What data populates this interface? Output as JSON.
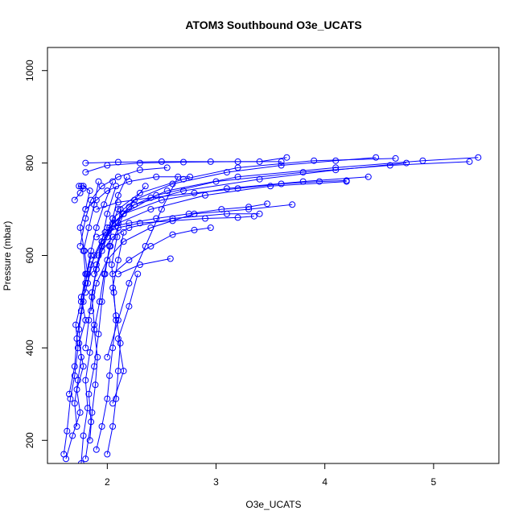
{
  "chart_data": {
    "type": "line",
    "title": "ATOM3 Southbound O3e_UCATS",
    "xlabel": "O3e_UCATS",
    "ylabel": "Pressure (mbar)",
    "xlim": [
      1.45,
      5.6
    ],
    "ylim": [
      1050,
      150
    ],
    "y_reversed": true,
    "xticks": [
      2,
      3,
      4,
      5
    ],
    "yticks": [
      200,
      400,
      600,
      800,
      1000
    ],
    "grid": false,
    "legend": "none",
    "marker": "open-circle",
    "color": "#0000ff",
    "series": [
      {
        "x": [
          1.62,
          1.68,
          1.75,
          1.72,
          1.78,
          1.74,
          1.8,
          1.76,
          1.82,
          1.79,
          1.75,
          1.8,
          1.84,
          1.78
        ],
        "y": [
          160,
          210,
          260,
          310,
          360,
          410,
          460,
          510,
          560,
          610,
          660,
          700,
          740,
          750
        ]
      },
      {
        "x": [
          1.6,
          1.63,
          1.66,
          1.7,
          1.73,
          1.71,
          1.76,
          1.8,
          1.78,
          1.83,
          1.88,
          1.92
        ],
        "y": [
          170,
          220,
          290,
          340,
          400,
          450,
          500,
          560,
          610,
          660,
          710,
          760
        ]
      },
      {
        "x": [
          1.8,
          1.85,
          1.83,
          1.88,
          1.92,
          1.95,
          1.98,
          2.02,
          2.05,
          2.1,
          2.18
        ],
        "y": [
          160,
          240,
          300,
          360,
          430,
          500,
          560,
          620,
          680,
          730,
          770
        ]
      },
      {
        "x": [
          1.76,
          1.78,
          1.82,
          1.8,
          1.84,
          1.88,
          1.86,
          1.9,
          1.95,
          2.0,
          2.08
        ],
        "y": [
          150,
          210,
          270,
          330,
          390,
          450,
          510,
          570,
          630,
          690,
          750
        ]
      },
      {
        "x": [
          1.9,
          1.95,
          2.0,
          2.02,
          2.05,
          2.08,
          2.06,
          2.04,
          2.09,
          2.12
        ],
        "y": [
          180,
          230,
          290,
          340,
          400,
          460,
          520,
          580,
          640,
          700
        ]
      },
      {
        "x": [
          2.0,
          2.05,
          2.08,
          2.1,
          2.12,
          2.08,
          2.05,
          2.1,
          2.15
        ],
        "y": [
          170,
          230,
          290,
          350,
          410,
          470,
          530,
          590,
          650
        ]
      },
      {
        "x": [
          1.72,
          1.7,
          1.73,
          1.76,
          1.74,
          1.78,
          1.81,
          1.85,
          1.9,
          1.97,
          2.05
        ],
        "y": [
          230,
          280,
          330,
          380,
          440,
          500,
          560,
          610,
          660,
          710,
          760
        ]
      },
      {
        "x": [
          1.84,
          1.86,
          1.89,
          1.91,
          1.88,
          1.93,
          1.97,
          2.03,
          2.15,
          2.35
        ],
        "y": [
          200,
          260,
          320,
          380,
          440,
          500,
          560,
          620,
          690,
          750
        ]
      },
      {
        "x": [
          1.8,
          1.83,
          1.86,
          1.9,
          1.95,
          2.05,
          2.2,
          2.6,
          3.1,
          3.4
        ],
        "y": [
          400,
          460,
          520,
          570,
          610,
          640,
          660,
          680,
          690,
          690
        ]
      },
      {
        "x": [
          1.85,
          1.9,
          2.0,
          2.15,
          2.4,
          2.8,
          3.3,
          3.7
        ],
        "y": [
          480,
          540,
          590,
          630,
          660,
          690,
          700,
          710
        ]
      },
      {
        "x": [
          1.8,
          1.85,
          1.95,
          2.1,
          2.4,
          2.9,
          3.5,
          4.2
        ],
        "y": [
          520,
          580,
          630,
          670,
          700,
          730,
          750,
          760
        ]
      },
      {
        "x": [
          1.82,
          1.88,
          1.98,
          2.15,
          2.5,
          3.1,
          3.8,
          4.4
        ],
        "y": [
          540,
          600,
          650,
          690,
          720,
          745,
          760,
          770
        ]
      },
      {
        "x": [
          1.88,
          1.95,
          2.05,
          2.25,
          2.7,
          3.4,
          4.1,
          4.75
        ],
        "y": [
          560,
          620,
          670,
          710,
          740,
          765,
          785,
          800
        ]
      },
      {
        "x": [
          1.9,
          2.0,
          2.15,
          2.45,
          3.0,
          3.8,
          4.6,
          5.33
        ],
        "y": [
          580,
          640,
          690,
          730,
          760,
          780,
          795,
          803
        ]
      },
      {
        "x": [
          1.92,
          2.02,
          2.2,
          2.55,
          3.2,
          4.1,
          4.9,
          5.41
        ],
        "y": [
          600,
          660,
          705,
          740,
          770,
          790,
          805,
          812
        ]
      },
      {
        "x": [
          1.95,
          2.05,
          2.25,
          2.6,
          3.1,
          3.6,
          4.1,
          4.47
        ],
        "y": [
          620,
          680,
          720,
          755,
          780,
          795,
          805,
          812
        ]
      },
      {
        "x": [
          2.0,
          2.1,
          2.3,
          2.7,
          3.2,
          3.9,
          4.65
        ],
        "y": [
          640,
          700,
          735,
          765,
          790,
          805,
          810
        ]
      },
      {
        "x": [
          1.8,
          2.0,
          2.3,
          2.7,
          3.2,
          3.6
        ],
        "y": [
          780,
          795,
          800,
          802,
          803,
          803
        ]
      },
      {
        "x": [
          1.8,
          2.1,
          2.5,
          2.95,
          3.4,
          3.65
        ],
        "y": [
          800,
          802,
          803,
          803,
          803,
          812
        ]
      },
      {
        "x": [
          1.9,
          2.1,
          2.3,
          2.6,
          2.9,
          3.2,
          3.35
        ],
        "y": [
          640,
          660,
          670,
          675,
          680,
          682,
          685
        ]
      },
      {
        "x": [
          2.0,
          2.2,
          2.45,
          2.75,
          3.05,
          3.3,
          3.47
        ],
        "y": [
          660,
          670,
          680,
          690,
          700,
          705,
          712
        ]
      },
      {
        "x": [
          1.9,
          2.1,
          2.4,
          2.8,
          3.2,
          3.6,
          3.95,
          4.2
        ],
        "y": [
          700,
          715,
          725,
          735,
          745,
          755,
          760,
          762
        ]
      },
      {
        "x": [
          2.1,
          2.3,
          2.58
        ],
        "y": [
          560,
          580,
          593
        ]
      },
      {
        "x": [
          2.05,
          2.2,
          2.4,
          2.6,
          2.8,
          2.95
        ],
        "y": [
          560,
          590,
          620,
          645,
          655,
          660
        ]
      },
      {
        "x": [
          1.8,
          1.9,
          2.0,
          2.2,
          2.45,
          2.76
        ],
        "y": [
          700,
          720,
          740,
          760,
          770,
          770
        ]
      },
      {
        "x": [
          1.7,
          1.75,
          1.78,
          1.74,
          1.76
        ],
        "y": [
          720,
          735,
          745,
          750,
          750
        ]
      },
      {
        "x": [
          1.75,
          1.8,
          1.85,
          1.95,
          2.1,
          2.3,
          2.55
        ],
        "y": [
          620,
          680,
          720,
          750,
          770,
          785,
          790
        ]
      },
      {
        "x": [
          2.0,
          2.1,
          2.2,
          2.35,
          2.5,
          2.65
        ],
        "y": [
          380,
          460,
          540,
          620,
          700,
          770
        ]
      },
      {
        "x": [
          2.05,
          2.15,
          2.1,
          2.2,
          2.28
        ],
        "y": [
          280,
          350,
          420,
          490,
          560
        ]
      },
      {
        "x": [
          1.65,
          1.7,
          1.72,
          1.76,
          1.8,
          1.85
        ],
        "y": [
          300,
          360,
          420,
          480,
          540,
          600
        ]
      }
    ]
  }
}
